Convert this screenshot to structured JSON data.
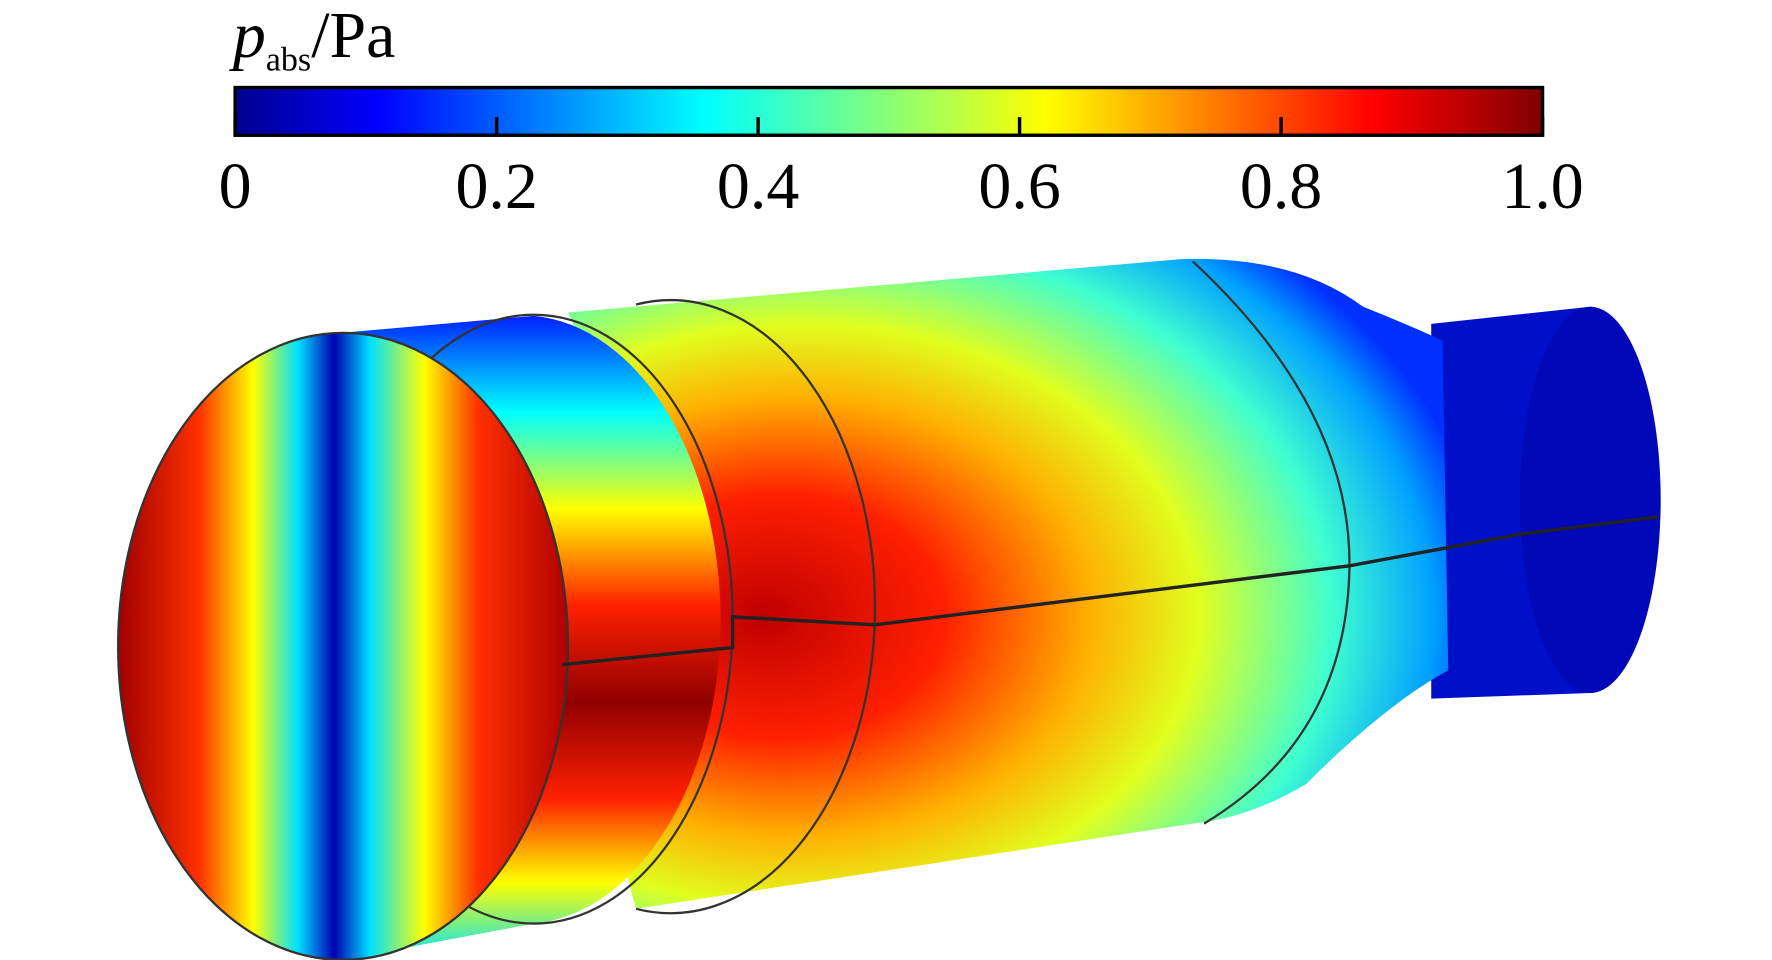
{
  "colorbar": {
    "label": {
      "symbol": "p",
      "subscript": "abs",
      "unit": "/Pa"
    },
    "range": [
      0,
      1
    ],
    "ticks": [
      0,
      0.2,
      0.4,
      0.6,
      0.8,
      {
        "value": 1,
        "label": "1.0"
      }
    ]
  }
}
